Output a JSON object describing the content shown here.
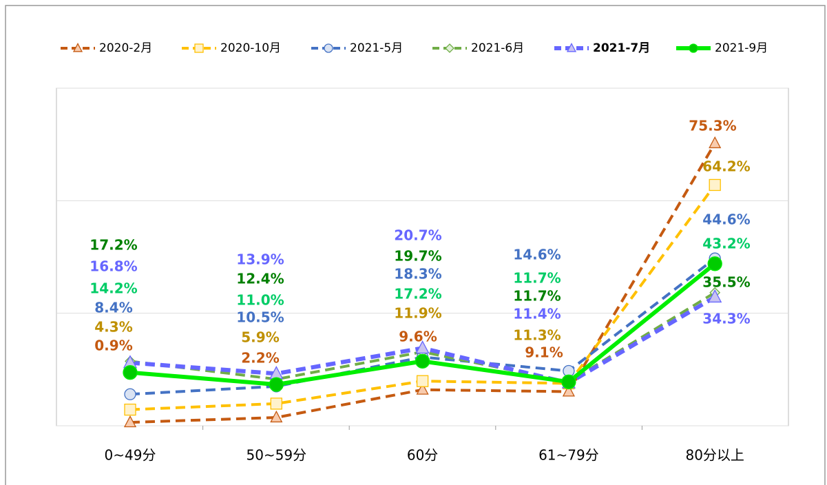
{
  "chart_data": {
    "type": "line",
    "categories": [
      "0~49分",
      "50~59分",
      "60分",
      "61~79分",
      "80分以上"
    ],
    "ylim": [
      0,
      90
    ],
    "yticks": [
      0,
      30,
      60,
      90
    ],
    "grid": true,
    "series": [
      {
        "name": "2020-2月",
        "color": "#c55a11",
        "label_color": "#c55a11",
        "marker": "triangle",
        "dash": true,
        "marker_fill": "#f8cbad",
        "values": [
          0.9,
          2.2,
          9.6,
          9.1,
          75.3
        ],
        "value_labels": [
          "0.9%",
          "2.2%",
          "9.6%",
          "9.1%",
          "75.3%"
        ]
      },
      {
        "name": "2020-10月",
        "color": "#ffc000",
        "label_color": "#bf9000",
        "marker": "square",
        "dash": true,
        "marker_fill": "#fff2cc",
        "values": [
          4.3,
          5.9,
          11.9,
          11.3,
          64.2
        ],
        "value_labels": [
          "4.3%",
          "5.9%",
          "11.9%",
          "11.3%",
          "64.2%"
        ]
      },
      {
        "name": "2021-5月",
        "color": "#4472c4",
        "label_color": "#4472c4",
        "marker": "circle",
        "dash": true,
        "marker_fill": "#dae3f3",
        "values": [
          8.4,
          10.5,
          18.3,
          14.6,
          44.6
        ],
        "value_labels": [
          "8.4%",
          "10.5%",
          "18.3%",
          "14.6%",
          "44.6%"
        ]
      },
      {
        "name": "2021-6月",
        "color": "#70ad47",
        "label_color": "#008000",
        "marker": "diamond",
        "dash": true,
        "marker_fill": "#e2f0d9",
        "values": [
          17.2,
          12.4,
          19.7,
          11.7,
          35.5
        ],
        "value_labels": [
          "17.2%",
          "12.4%",
          "19.7%",
          "11.7%",
          "35.5%"
        ]
      },
      {
        "name": "2021-7月",
        "color": "#6666ff",
        "label_color": "#6666ff",
        "marker": "triangle",
        "dash": true,
        "marker_fill": "#c9c3f0",
        "values": [
          16.8,
          13.9,
          20.7,
          11.4,
          34.3
        ],
        "value_labels": [
          "16.8%",
          "13.9%",
          "20.7%",
          "11.4%",
          "34.3%"
        ]
      },
      {
        "name": "2021-9月",
        "color": "#00ee00",
        "label_color": "#00cc66",
        "marker": "circle",
        "dash": false,
        "marker_fill": "#00cc00",
        "values": [
          14.2,
          11.0,
          17.2,
          11.7,
          43.2
        ],
        "value_labels": [
          "14.2%",
          "11.0%",
          "17.2%",
          "11.7%",
          "43.2%"
        ]
      }
    ]
  }
}
